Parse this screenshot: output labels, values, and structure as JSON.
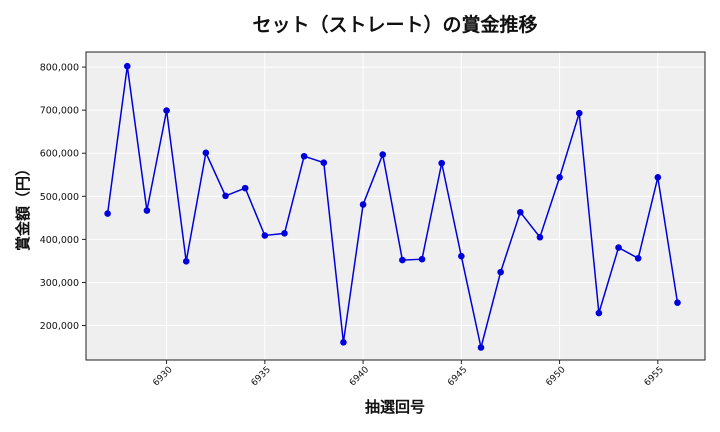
{
  "chart_data": {
    "type": "line",
    "title": "セット（ストレート）の賞金推移",
    "xlabel": "抽選回号",
    "ylabel": "賞金額（円）",
    "x": [
      6927,
      6928,
      6929,
      6930,
      6931,
      6932,
      6933,
      6934,
      6935,
      6936,
      6937,
      6938,
      6939,
      6940,
      6941,
      6942,
      6943,
      6944,
      6945,
      6946,
      6947,
      6948,
      6949,
      6950,
      6951,
      6952,
      6953,
      6954,
      6955,
      6956
    ],
    "series": [
      {
        "name": "賞金額",
        "color": "#0000dd",
        "values": [
          460000,
          802000,
          467000,
          699000,
          349000,
          601000,
          501000,
          519000,
          409000,
          414000,
          593000,
          578000,
          161000,
          481000,
          597000,
          352000,
          354000,
          577000,
          361000,
          149000,
          324000,
          463000,
          405000,
          544000,
          693000,
          229000,
          381000,
          356000,
          544000,
          253000
        ]
      }
    ],
    "xticks": [
      6930,
      6935,
      6940,
      6945,
      6950,
      6955
    ],
    "xtick_labels": [
      "6930",
      "6935",
      "6940",
      "6945",
      "6950",
      "6955"
    ],
    "yticks": [
      200000,
      300000,
      400000,
      500000,
      600000,
      700000,
      800000
    ],
    "ytick_labels": [
      "200,000",
      "300,000",
      "400,000",
      "500,000",
      "600,000",
      "700,000",
      "800,000"
    ],
    "xlim": [
      6925.9,
      6957.4
    ],
    "ylim": [
      120000,
      835000
    ],
    "grid": true,
    "legend": "none",
    "background": "#efefef",
    "grid_color": "#ffffff"
  }
}
